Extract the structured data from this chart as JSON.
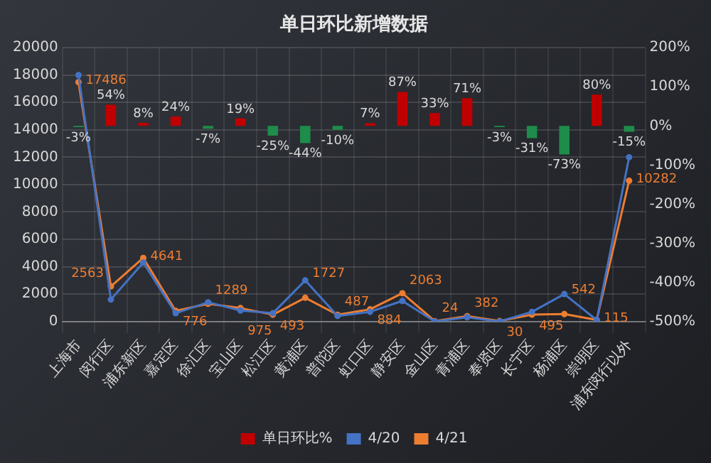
{
  "chart_data": {
    "type": "bar",
    "title": "单日环比新增数据",
    "categories": [
      "上海市",
      "闵行区",
      "浦东新区",
      "嘉定区",
      "徐汇区",
      "宝山区",
      "松江区",
      "黄浦区",
      "普陀区",
      "虹口区",
      "静安区",
      "金山区",
      "青浦区",
      "奉贤区",
      "长宁区",
      "杨浦区",
      "崇明区",
      "浦东闵行以外"
    ],
    "series": [
      {
        "name": "单日环比%",
        "axis": "y2",
        "color": "#c00000",
        "colors": [
          "#1e8c4a",
          "#c00000",
          "#c00000",
          "#c00000",
          "#1e8c4a",
          "#c00000",
          "#1e8c4a",
          "#1e8c4a",
          "#1e8c4a",
          "#c00000",
          "#c00000",
          "#c00000",
          "#c00000",
          "#1e8c4a",
          "#1e8c4a",
          "#1e8c4a",
          "#c00000",
          "#1e8c4a"
        ],
        "values": [
          -3,
          54,
          8,
          24,
          -7,
          19,
          -25,
          -44,
          -10,
          7,
          87,
          33,
          71,
          -3,
          -31,
          -73,
          80,
          -15
        ],
        "value_labels": [
          "-3%",
          "54%",
          "8%",
          "24%",
          "-7%",
          "19%",
          "-25%",
          "-44%",
          "-10%",
          "7%",
          "87%",
          "33%",
          "71%",
          "-3%",
          "-31%",
          "-73%",
          "80%",
          "-15%"
        ]
      },
      {
        "name": "4/20",
        "type": "line",
        "color": "#4472c4",
        "values": [
          18000,
          1600,
          4300,
          600,
          1400,
          800,
          600,
          3000,
          400,
          700,
          1500,
          0,
          300,
          0,
          700,
          2000,
          100,
          12000
        ]
      },
      {
        "name": "4/21",
        "type": "line",
        "color": "#ed7d31",
        "values": [
          17486,
          2563,
          4641,
          776,
          1289,
          975,
          493,
          1727,
          487,
          884,
          2063,
          24,
          382,
          30,
          495,
          542,
          115,
          10282
        ],
        "value_labels": [
          "17486",
          "2563",
          "4641",
          "776",
          "1289",
          "975",
          "493",
          "1727",
          "487",
          "884",
          "2063",
          "24",
          "382",
          "30",
          "495",
          "542",
          "115",
          "10282"
        ]
      }
    ],
    "ylim": [
      0,
      20000
    ],
    "yticks": [
      0,
      2000,
      4000,
      6000,
      8000,
      10000,
      12000,
      14000,
      16000,
      18000,
      20000
    ],
    "y2lim": [
      -500,
      200
    ],
    "y2ticks": [
      {
        "value": -500,
        "label": "-500%"
      },
      {
        "value": -400,
        "label": "-400%"
      },
      {
        "value": -300,
        "label": "-300%"
      },
      {
        "value": -200,
        "label": "-200%"
      },
      {
        "value": -100,
        "label": "-100%"
      },
      {
        "value": 0,
        "label": "0%"
      },
      {
        "value": 100,
        "label": "100%"
      },
      {
        "value": 200,
        "label": "200%"
      }
    ],
    "grid": true,
    "legend": "bottom",
    "marker": "circle"
  }
}
